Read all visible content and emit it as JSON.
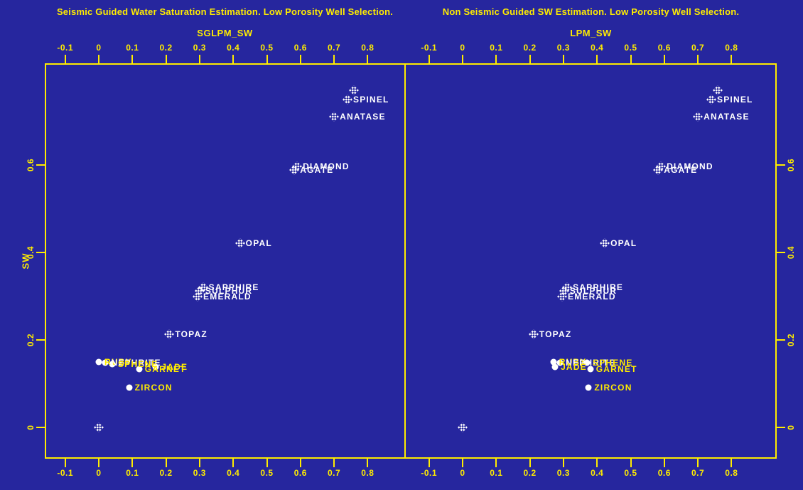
{
  "colors": {
    "background": "#26269E",
    "axis_yellow": "#FFEC00",
    "title_color": "#FFEC00",
    "label_white": "#FFFFFF"
  },
  "x_tick_labels": [
    "-0.1",
    "0",
    "0.1",
    "0.2",
    "0.3",
    "0.4",
    "0.5",
    "0.6",
    "0.7",
    "0.8"
  ],
  "y_tick_labels": [
    "0",
    "0.2",
    "0.4",
    "0.6"
  ],
  "chart_data": [
    {
      "type": "scatter",
      "title": "Seismic Guided Water Saturation Estimation. Low Porosity Well Selection.",
      "xlabel": "SGLPM_SW",
      "ylabel": "SW",
      "xlim": [
        -0.16,
        0.91
      ],
      "ylim": [
        -0.07,
        0.83
      ],
      "grid": false,
      "x_ticks": [
        "-0.1",
        "0",
        "0.1",
        "0.2",
        "0.3",
        "0.4",
        "0.5",
        "0.6",
        "0.7",
        "0.8"
      ],
      "y_ticks": [
        "0",
        "0.2",
        "0.4",
        "0.6"
      ],
      "points": [
        {
          "label": "",
          "x": 0.76,
          "y": 0.77,
          "marker": "diamond",
          "label_color": "white"
        },
        {
          "label": "SPINEL",
          "x": 0.74,
          "y": 0.75,
          "marker": "diamond",
          "label_color": "white"
        },
        {
          "label": "ANATASE",
          "x": 0.7,
          "y": 0.71,
          "marker": "diamond",
          "label_color": "white"
        },
        {
          "label": "DIAMOND",
          "x": 0.59,
          "y": 0.597,
          "marker": "diamond",
          "label_color": "white"
        },
        {
          "label": "AGATE",
          "x": 0.582,
          "y": 0.589,
          "marker": "diamond",
          "label_color": "white"
        },
        {
          "label": "OPAL",
          "x": 0.42,
          "y": 0.421,
          "marker": "diamond",
          "label_color": "white"
        },
        {
          "label": "SAPPHIRE",
          "x": 0.31,
          "y": 0.32,
          "marker": "diamond",
          "label_color": "white"
        },
        {
          "label": "SULPHUR",
          "x": 0.3,
          "y": 0.312,
          "marker": "diamond",
          "label_color": "white"
        },
        {
          "label": "EMERALD",
          "x": 0.294,
          "y": 0.3,
          "marker": "diamond",
          "label_color": "white"
        },
        {
          "label": "TOPAZ",
          "x": 0.21,
          "y": 0.213,
          "marker": "diamond",
          "label_color": "white"
        },
        {
          "label": "RUBY",
          "x": 0.0,
          "y": 0.15,
          "marker": "dot",
          "label_color": "yellow"
        },
        {
          "label": "NEPHRITE",
          "x": 0.02,
          "y": 0.148,
          "marker": "dot",
          "label_color": "white"
        },
        {
          "label": "SPHENE",
          "x": 0.04,
          "y": 0.145,
          "marker": "dot",
          "label_color": "yellow"
        },
        {
          "label": "JADE",
          "x": 0.17,
          "y": 0.139,
          "marker": "dot",
          "label_color": "yellow"
        },
        {
          "label": "GARNET",
          "x": 0.12,
          "y": 0.133,
          "marker": "dot",
          "label_color": "yellow"
        },
        {
          "label": "ZIRCON",
          "x": 0.09,
          "y": 0.091,
          "marker": "dot",
          "label_color": "yellow"
        },
        {
          "label": "",
          "x": 0.0,
          "y": 0.0,
          "marker": "diamond",
          "label_color": "white"
        }
      ]
    },
    {
      "type": "scatter",
      "title": "Non Seismic Guided SW Estimation. Low Porosity Well Selection.",
      "xlabel": "LPM_SW",
      "ylabel": "SW",
      "xlim": [
        -0.16,
        0.94
      ],
      "ylim": [
        -0.07,
        0.83
      ],
      "grid": false,
      "x_ticks": [
        "-0.1",
        "0",
        "0.1",
        "0.2",
        "0.3",
        "0.4",
        "0.5",
        "0.6",
        "0.7",
        "0.8"
      ],
      "y_ticks": [
        "0",
        "0.2",
        "0.4",
        "0.6"
      ],
      "points": [
        {
          "label": "",
          "x": 0.76,
          "y": 0.77,
          "marker": "diamond",
          "label_color": "white"
        },
        {
          "label": "SPINEL",
          "x": 0.74,
          "y": 0.75,
          "marker": "diamond",
          "label_color": "white"
        },
        {
          "label": "ANATASE",
          "x": 0.7,
          "y": 0.71,
          "marker": "diamond",
          "label_color": "white"
        },
        {
          "label": "DIAMOND",
          "x": 0.59,
          "y": 0.597,
          "marker": "diamond",
          "label_color": "white"
        },
        {
          "label": "AGATE",
          "x": 0.582,
          "y": 0.589,
          "marker": "diamond",
          "label_color": "white"
        },
        {
          "label": "OPAL",
          "x": 0.423,
          "y": 0.421,
          "marker": "diamond",
          "label_color": "white"
        },
        {
          "label": "SAPPHIRE",
          "x": 0.311,
          "y": 0.32,
          "marker": "diamond",
          "label_color": "white"
        },
        {
          "label": "SULPHUR",
          "x": 0.302,
          "y": 0.312,
          "marker": "diamond",
          "label_color": "white"
        },
        {
          "label": "EMERALD",
          "x": 0.296,
          "y": 0.3,
          "marker": "diamond",
          "label_color": "white"
        },
        {
          "label": "TOPAZ",
          "x": 0.211,
          "y": 0.213,
          "marker": "diamond",
          "label_color": "white"
        },
        {
          "label": "RUBY",
          "x": 0.27,
          "y": 0.15,
          "marker": "dot",
          "label_color": "yellow"
        },
        {
          "label": "NEPHRITE",
          "x": 0.29,
          "y": 0.148,
          "marker": "dot",
          "label_color": "white"
        },
        {
          "label": "SPHENE",
          "x": 0.37,
          "y": 0.148,
          "marker": "dot",
          "label_color": "yellow"
        },
        {
          "label": "JADE",
          "x": 0.275,
          "y": 0.138,
          "marker": "dot",
          "label_color": "yellow"
        },
        {
          "label": "GARNET",
          "x": 0.38,
          "y": 0.133,
          "marker": "dot",
          "label_color": "yellow"
        },
        {
          "label": "ZIRCON",
          "x": 0.375,
          "y": 0.091,
          "marker": "dot",
          "label_color": "yellow"
        }
      ]
    }
  ],
  "extra_points_note": {
    "right_panel_origin_point": {
      "label": "",
      "x": 0.0,
      "y": 0.0,
      "marker": "diamond"
    }
  }
}
